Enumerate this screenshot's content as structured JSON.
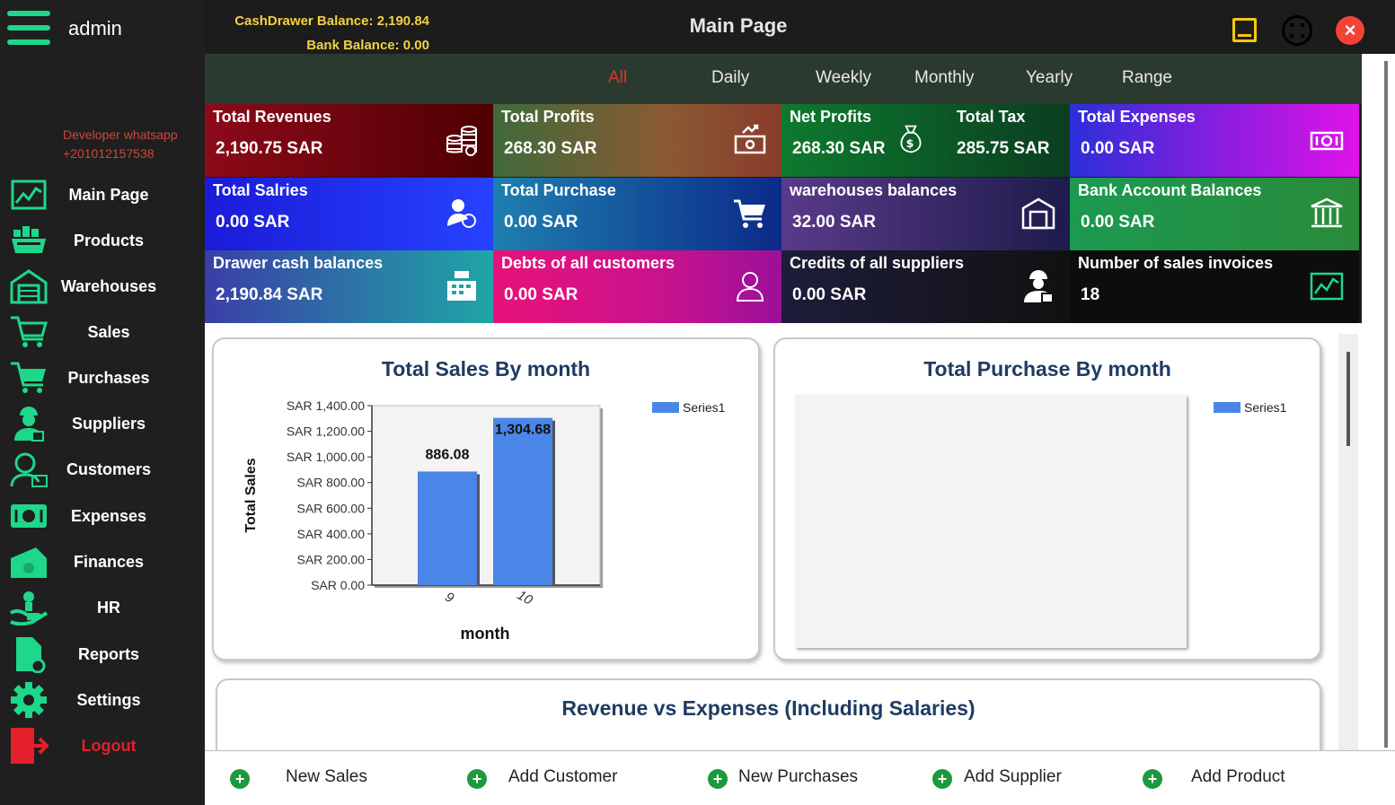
{
  "header": {
    "username": "admin",
    "cashdrawer_label": "CashDrawer Balance:",
    "cashdrawer_value": "2,190.84",
    "bank_label": "Bank Balance:",
    "bank_value": "0.00",
    "title": "Main Page"
  },
  "developer": {
    "line1": "Developer whatsapp",
    "line2": "+201012157538"
  },
  "sidebar": {
    "items": [
      {
        "label": "Main Page",
        "icon": "chart-line-icon"
      },
      {
        "label": "Products",
        "icon": "products-basket-icon"
      },
      {
        "label": "Warehouses",
        "icon": "warehouse-icon"
      },
      {
        "label": "Sales",
        "icon": "cart-icon"
      },
      {
        "label": "Purchases",
        "icon": "shopping-cart-icon"
      },
      {
        "label": "Suppliers",
        "icon": "supplier-icon"
      },
      {
        "label": "Customers",
        "icon": "customer-icon"
      },
      {
        "label": "Expenses",
        "icon": "cash-icon"
      },
      {
        "label": "Finances",
        "icon": "money-stack-icon"
      },
      {
        "label": "HR",
        "icon": "hand-person-icon"
      },
      {
        "label": "Reports",
        "icon": "report-file-icon"
      },
      {
        "label": "Settings",
        "icon": "gear-icon"
      },
      {
        "label": "Logout",
        "icon": "logout-icon"
      }
    ]
  },
  "filters": [
    "All",
    "Daily",
    "Weekly",
    "Monthly",
    "Yearly",
    "Range"
  ],
  "active_filter": "All",
  "tiles": {
    "total_revenues": {
      "label": "Total Revenues",
      "value": "2,190.75 SAR"
    },
    "total_profits": {
      "label": "Total Profits",
      "value": "268.30 SAR"
    },
    "net_profits": {
      "label": "Net Profits",
      "value": "268.30 SAR"
    },
    "total_tax": {
      "label": "Total Tax",
      "value": "285.75 SAR"
    },
    "total_expenses": {
      "label": "Total Expenses",
      "value": "0.00 SAR"
    },
    "total_salaries": {
      "label": "Total Salries",
      "value": "0.00 SAR"
    },
    "total_purchase": {
      "label": "Total Purchase",
      "value": "0.00 SAR"
    },
    "warehouses_balances": {
      "label": "warehouses balances",
      "value": "32.00 SAR"
    },
    "bank_account_balances": {
      "label": "Bank Account Balances",
      "value": "0.00 SAR"
    },
    "drawer_cash_balances": {
      "label": "Drawer cash balances",
      "value": "2,190.84 SAR"
    },
    "debts_customers": {
      "label": "Debts of all customers",
      "value": "0.00 SAR"
    },
    "credits_suppliers": {
      "label": "Credits of all suppliers",
      "value": "0.00 SAR"
    },
    "sales_invoices": {
      "label": "Number of sales invoices",
      "value": "18"
    }
  },
  "colors": {
    "accent_green": "#1ed78a",
    "logout_red": "#e3202b",
    "warning_yellow": "#f2c811",
    "bar_blue": "#4a86e8",
    "title_navy": "#1f3b63"
  },
  "cards": {
    "sales_title": "Total Sales By month",
    "purchase_title": "Total Purchase By month",
    "revenue_title": "Revenue vs Expenses (Including Salaries)",
    "purchase_legend": "Series1"
  },
  "chart_data": {
    "type": "bar",
    "title": "Total Sales By month",
    "xlabel": "month",
    "ylabel": "Total Sales",
    "categories": [
      "9",
      "10"
    ],
    "series": [
      {
        "name": "Series1",
        "values": [
          886.08,
          1304.68
        ]
      }
    ],
    "data_labels": [
      "886.08",
      "1,304.68"
    ],
    "ylim": [
      0,
      1400
    ],
    "yticks": [
      0,
      200,
      400,
      600,
      800,
      1000,
      1200,
      1400
    ],
    "ytick_labels": [
      "SAR 0.00",
      "SAR 200.00",
      "SAR 400.00",
      "SAR 600.00",
      "SAR 800.00",
      "SAR 1,000.00",
      "SAR 1,200.00",
      "SAR 1,400.00"
    ],
    "legend": "top-right",
    "grid": false
  },
  "quick_actions": [
    "New Sales",
    "Add Customer",
    "New Purchases",
    "Add Supplier",
    "Add Product"
  ]
}
